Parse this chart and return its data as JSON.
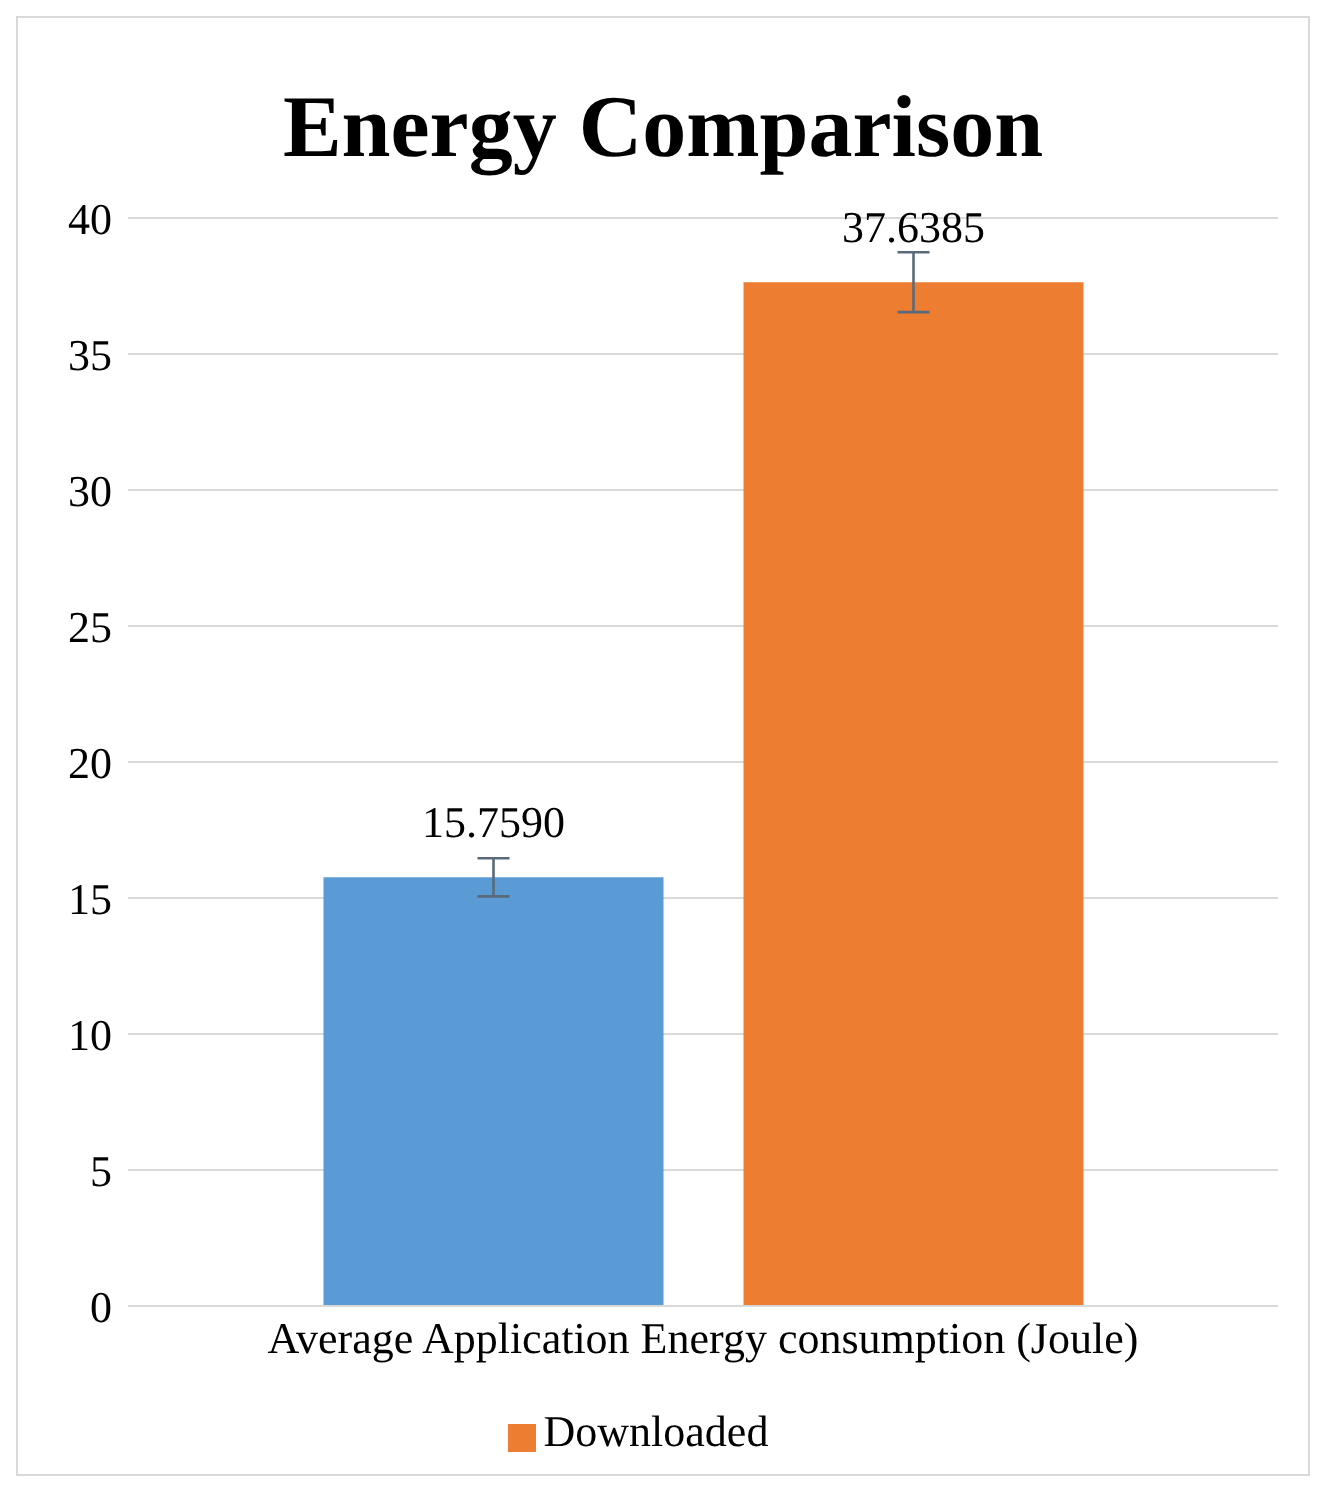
{
  "chart_data": {
    "type": "bar",
    "title": "Energy Comparison",
    "categories": [
      "Average Application  Energy consumption (Joule)"
    ],
    "series": [
      {
        "color": "#5b9bd5",
        "values": [
          15.759
        ],
        "value_labels": [
          "15.7590"
        ],
        "errors": [
          0.7
        ]
      },
      {
        "name": "Downloaded",
        "color": "#ed7d31",
        "values": [
          37.6385
        ],
        "value_labels": [
          "37.6385"
        ],
        "errors": [
          1.1
        ]
      }
    ],
    "ylim": [
      0,
      40
    ],
    "yticks": [
      0,
      5,
      10,
      15,
      20,
      25,
      30,
      35,
      40
    ],
    "grid": "y",
    "legend": "bottom"
  }
}
